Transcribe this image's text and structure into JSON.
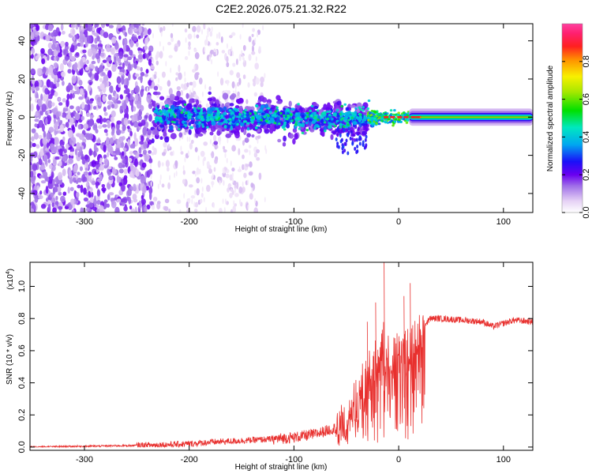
{
  "title": "C2E2.2026.075.21.32.R22",
  "colors": {
    "snr_line": "#e8302e",
    "frame": "#000000"
  },
  "chart_data": [
    {
      "type": "heatmap",
      "xlabel": "Height of straight line (km)",
      "ylabel": "Frequency (Hz)",
      "xlim": [
        -352,
        128
      ],
      "ylim": [
        -50,
        49
      ],
      "x_ticks": [
        -300,
        -200,
        -100,
        0,
        100
      ],
      "y_ticks": [
        -40,
        -20,
        0,
        20,
        40
      ],
      "colorbar": {
        "label": "Normalized spectral amplitude",
        "range": [
          0.0,
          1.0
        ],
        "ticks": [
          "0.0",
          "0.2",
          "0.4",
          "0.6",
          "0.8"
        ],
        "tick_values": [
          0.0,
          0.2,
          0.4,
          0.6,
          0.8
        ],
        "colormap": "rainbow (white-lavender-violet-blue-cyan-green-yellow-orange-red-magenta)"
      },
      "regions": [
        {
          "name": "noise_scatter_dense",
          "x_range": [
            -352,
            -235
          ],
          "freq_range": [
            -50,
            49
          ],
          "amplitude": 0.15
        },
        {
          "name": "noise_scatter_sparse",
          "x_range": [
            -235,
            -130
          ],
          "freq_range": [
            -50,
            49
          ],
          "amplitude": 0.05
        },
        {
          "name": "broad_signal_band",
          "x_range": [
            -235,
            -30
          ],
          "freq_range": [
            -10,
            10
          ],
          "amplitude": 0.3
        },
        {
          "name": "narrowing_band",
          "x_range": [
            -30,
            10
          ],
          "freq_range": [
            -3,
            3
          ],
          "amplitude": 0.5
        },
        {
          "name": "steady_tone",
          "x_range": [
            10,
            128
          ],
          "freq_range": [
            -2,
            2
          ],
          "amplitude": 0.55
        }
      ]
    },
    {
      "type": "line",
      "xlabel": "Height of straight line (km)",
      "ylabel": "SNR (10 * v/v)",
      "y_multiplier_label": "(x10",
      "y_multiplier_exp": "4",
      "y_multiplier_close": ")",
      "xlim": [
        -352,
        128
      ],
      "ylim": [
        -0.02,
        1.15
      ],
      "x_ticks": [
        -300,
        -200,
        -100,
        0,
        100
      ],
      "y_ticks": [
        "0.0",
        "0.2",
        "0.4",
        "0.6",
        "0.8",
        "1.0"
      ],
      "y_tick_values": [
        0.0,
        0.2,
        0.4,
        0.6,
        0.8,
        1.0
      ],
      "series": [
        {
          "color": "#e8302e",
          "x": [
            -352,
            -300,
            -250,
            -220,
            -200,
            -180,
            -150,
            -120,
            -100,
            -80,
            -60,
            -50,
            -40,
            -30,
            -20,
            -15,
            -10,
            -5,
            0,
            5,
            10,
            15,
            20,
            25,
            30,
            40,
            60,
            80,
            90,
            100,
            110,
            128
          ],
          "y": [
            0.0,
            0.005,
            0.01,
            0.015,
            0.02,
            0.03,
            0.04,
            0.05,
            0.06,
            0.08,
            0.12,
            0.18,
            0.3,
            0.45,
            0.55,
            0.65,
            0.6,
            0.55,
            0.58,
            0.6,
            0.6,
            0.65,
            0.7,
            0.76,
            0.8,
            0.8,
            0.79,
            0.78,
            0.75,
            0.77,
            0.79,
            0.78
          ],
          "peaks": [
            {
              "x": -14,
              "y": 1.15
            },
            {
              "x": 11,
              "y": 1.02
            },
            {
              "x": -22,
              "y": 0.9
            },
            {
              "x": 5,
              "y": 0.94
            },
            {
              "x": -30,
              "y": 0.78
            }
          ]
        }
      ]
    }
  ]
}
